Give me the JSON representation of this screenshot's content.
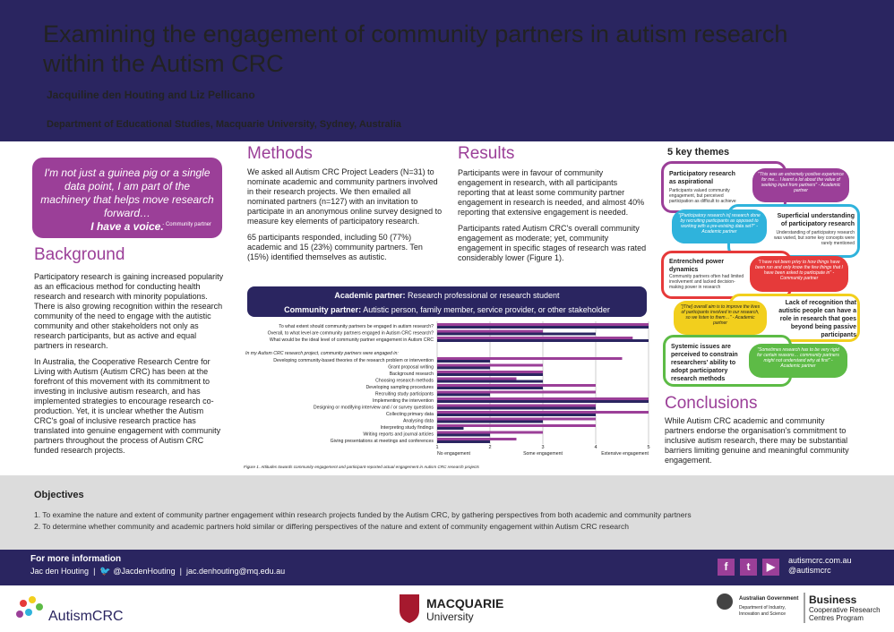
{
  "header": {
    "title": "Examining the engagement of community partners in autism research within the Autism CRC",
    "authors": "Jacquiline den Houting and Liz Pellicano",
    "department": "Department of Educational Studies, Macquarie University, Sydney, Australia"
  },
  "quote": {
    "text": "I'm not just a guinea pig or a single data point, I am part of the machinery that helps move research forward…",
    "strong": "I have a voice.",
    "attribution": "- Community partner"
  },
  "background": {
    "title": "Background",
    "p1": "Participatory research is gaining increased popularity as an efficacious method for conducting health research and research with minority populations. There is also growing recognition within the research community of the need to engage with the autistic community and other stakeholders not only as research participants, but as active and equal partners in research.",
    "p2": "In Australia, the Cooperative Research Centre for Living with Autism (Autism CRC) has been at the forefront of this movement with its commitment to investing in inclusive autism research, and has implemented strategies to encourage research co-production. Yet, it is unclear whether the Autism CRC's goal of inclusive research practice has translated into genuine engagement with community partners throughout the process of Autism CRC funded research projects."
  },
  "methods": {
    "title": "Methods",
    "p1": "We asked all Autism CRC Project Leaders (N=31) to nominate academic and community partners involved in their research projects. We then emailed all nominated partners (n=127) with an invitation to participate in an anonymous online survey designed to measure key elements of participatory research.",
    "p2": "65 participants responded, including 50 (77%) academic and 15 (23%) community partners. Ten (15%) identified themselves as autistic."
  },
  "results": {
    "title": "Results",
    "p1": "Participants were in favour of community engagement in research, with all participants reporting that at least some community partner engagement in research is needed, and almost 40% reporting that extensive engagement is needed.",
    "p2": "Participants rated Autism CRC's overall community engagement as moderate; yet, community engagement in specific stages of research was rated considerably lower (Figure 1)."
  },
  "legend": {
    "academic_label": "Academic partner:",
    "academic_text": "Research professional or research student",
    "community_label": "Community partner:",
    "community_text": "Autistic person, family member, service provider, or other stakeholder"
  },
  "chart_data": {
    "type": "bar",
    "subheading": "In my Autism CRC research project, community partners were engaged in:",
    "categories": [
      "To what extent should community partners be engaged in autism research?",
      "Overall, to what level are community partners engaged in Autism CRC research?",
      "What would be the ideal level of community partner engagement in Autism CRC",
      "Developing community-based theories of the research problem or intervention",
      "Grant proposal writing",
      "Background research",
      "Choosing research methods",
      "Developing sampling procedures",
      "Recruiting study participants",
      "Implementing the intervention",
      "Designing or modifying interview and / or survey questions",
      "Collecting primary data",
      "Analysing data",
      "Interpreting study findings",
      "Writing reports and journal articles",
      "Giving presentations at meetings and conferences"
    ],
    "series": [
      {
        "values": [
          5,
          3,
          4.7,
          4.5,
          3,
          3,
          2.5,
          4,
          4,
          5,
          4,
          5,
          4,
          4,
          3,
          2.5
        ]
      },
      {
        "values": [
          5,
          4,
          5,
          2,
          2,
          3,
          3,
          3,
          2,
          5,
          4,
          4,
          3,
          1.5,
          2,
          2
        ]
      }
    ],
    "xlim": [
      1,
      5
    ],
    "xticks": [
      "1",
      "2",
      "3",
      "4",
      "5"
    ],
    "scale_labels": {
      "low": "No engagement",
      "mid": "Some engagement",
      "high": "Extensive engagement"
    },
    "caption": "Figure 1. Attitudes towards community engagement and participant-reported actual engagement in Autism CRC research projects",
    "colors": {
      "academic": "#9b3f98",
      "community": "#2a2560"
    }
  },
  "themes": {
    "title": "5 key themes",
    "t1": {
      "heading": "Participatory research as aspirational",
      "desc": "Participants valued community engagement, but perceived participation as difficult to achieve",
      "quote": "\"This was an extremely positive experience for me… I learnt a lot about the value of seeking input from partners\"",
      "who": "- Academic partner"
    },
    "t2": {
      "heading": "Superficial understanding of participatory research",
      "desc": "Understanding of participatory research was varied, but some key concepts were rarely mentioned",
      "quote": "\"[Participatory research is] research done by recruiting participants as opposed to working with a pre-existing data set?\"",
      "who": "- Academic partner"
    },
    "t3": {
      "heading": "Entrenched power dynamics",
      "desc": "Community partners often had limited involvement and lacked decision-making power in research",
      "quote": "\"I have not been privy to how things have been run and only know the few things that I have been asked to participate in\"",
      "who": "- Community partner"
    },
    "t4": {
      "heading": "Lack of recognition that autistic people can have a role in research that goes beyond being passive participants",
      "quote": "\"[The] overall aim is to improve the lives of participants involved in our research, so we listen to them…\"",
      "who": "- Academic partner"
    },
    "t5": {
      "heading": "Systemic issues are perceived to constrain researchers' ability to adopt participatory research methods",
      "quote": "\"Sometimes research has to be very rigid for certain reasons… community partners might not understand why at first\"",
      "who": "- Academic partner"
    }
  },
  "conclusions": {
    "title": "Conclusions",
    "text": "While Autism CRC academic and community partners endorse the organisation's commitment to inclusive autism research, there may be substantial barriers limiting genuine and meaningful community engagement."
  },
  "objectives": {
    "title": "Objectives",
    "items": [
      "1.  To examine the nature and extent of community partner engagement within research projects funded by the Autism CRC, by gathering perspectives from both academic and community partners",
      "2.  To determine whether community and academic partners hold similar or differing perspectives of the nature and extent of community engagement within Autism CRC research"
    ]
  },
  "footer": {
    "title": "For more information",
    "name": "Jac den Houting",
    "handle": "@JacdenHouting",
    "email": "jac.denhouting@mq.edu.au",
    "sep": "|",
    "url": "autismcrc.com.au",
    "social": "@autismcrc"
  },
  "logos": {
    "autism": "AutismCRC",
    "mq1": "MACQUARIE",
    "mq2": "University",
    "gov1": "Australian Government",
    "gov2": "Department of Industry,",
    "gov3": "Innovation and Science",
    "bus1": "Business",
    "bus2": "Cooperative Research",
    "bus3": "Centres Program"
  }
}
